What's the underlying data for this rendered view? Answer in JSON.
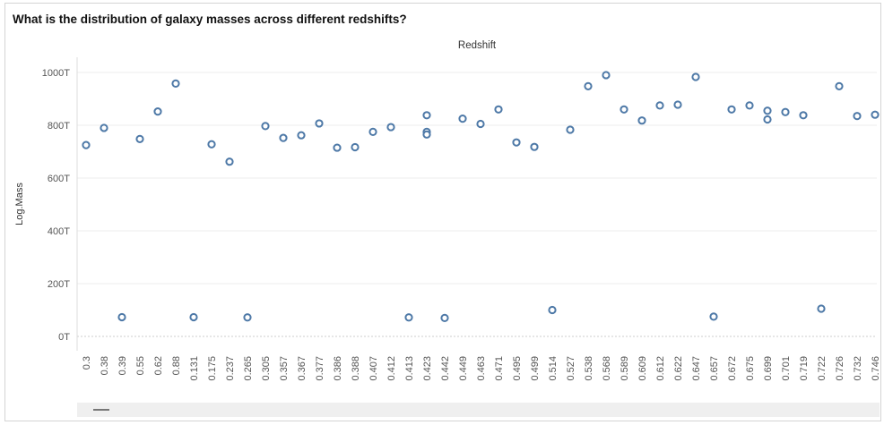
{
  "title": "What is the distribution of galaxy masses across different redshifts?",
  "column_header": "Redshift",
  "chart_data": {
    "type": "scatter",
    "title": "What is the distribution of galaxy masses across different redshifts?",
    "xlabel": "Redshift",
    "ylabel": "Log.Mass",
    "y_ticks": [
      "0T",
      "200T",
      "400T",
      "600T",
      "800T",
      "1000T"
    ],
    "y_tick_values": [
      0,
      200,
      400,
      600,
      800,
      1000
    ],
    "ylim": [
      -20,
      1020
    ],
    "grid": true,
    "categories": [
      "0.3",
      "0.38",
      "0.39",
      "0.55",
      "0.62",
      "0.88",
      "0.131",
      "0.175",
      "0.237",
      "0.265",
      "0.305",
      "0.357",
      "0.367",
      "0.377",
      "0.386",
      "0.388",
      "0.407",
      "0.412",
      "0.413",
      "0.423",
      "0.442",
      "0.449",
      "0.463",
      "0.471",
      "0.495",
      "0.499",
      "0.514",
      "0.527",
      "0.538",
      "0.568",
      "0.589",
      "0.609",
      "0.612",
      "0.622",
      "0.647",
      "0.657",
      "0.672",
      "0.675",
      "0.699",
      "0.701",
      "0.719",
      "0.722",
      "0.726",
      "0.732",
      "0.746"
    ],
    "points": [
      {
        "cat": 0,
        "values": [
          725
        ]
      },
      {
        "cat": 1,
        "values": [
          790
        ]
      },
      {
        "cat": 2,
        "values": [
          73
        ]
      },
      {
        "cat": 3,
        "values": [
          748
        ]
      },
      {
        "cat": 4,
        "values": [
          852
        ]
      },
      {
        "cat": 5,
        "values": [
          958
        ]
      },
      {
        "cat": 6,
        "values": [
          73
        ]
      },
      {
        "cat": 7,
        "values": [
          728
        ]
      },
      {
        "cat": 8,
        "values": [
          662
        ]
      },
      {
        "cat": 9,
        "values": [
          72
        ]
      },
      {
        "cat": 10,
        "values": [
          797
        ]
      },
      {
        "cat": 11,
        "values": [
          752
        ]
      },
      {
        "cat": 12,
        "values": [
          762
        ]
      },
      {
        "cat": 13,
        "values": [
          807
        ]
      },
      {
        "cat": 14,
        "values": [
          715
        ]
      },
      {
        "cat": 15,
        "values": [
          717
        ]
      },
      {
        "cat": 16,
        "values": [
          775
        ]
      },
      {
        "cat": 17,
        "values": [
          793
        ]
      },
      {
        "cat": 18,
        "values": [
          72
        ]
      },
      {
        "cat": 19,
        "values": [
          838,
          775,
          765
        ]
      },
      {
        "cat": 20,
        "values": [
          70
        ]
      },
      {
        "cat": 21,
        "values": [
          825
        ]
      },
      {
        "cat": 22,
        "values": [
          805
        ]
      },
      {
        "cat": 23,
        "values": [
          860
        ]
      },
      {
        "cat": 24,
        "values": [
          735
        ]
      },
      {
        "cat": 25,
        "values": [
          718
        ]
      },
      {
        "cat": 26,
        "values": [
          100
        ]
      },
      {
        "cat": 27,
        "values": [
          783
        ]
      },
      {
        "cat": 28,
        "values": [
          948
        ]
      },
      {
        "cat": 29,
        "values": [
          990
        ]
      },
      {
        "cat": 30,
        "values": [
          860
        ]
      },
      {
        "cat": 31,
        "values": [
          818
        ]
      },
      {
        "cat": 32,
        "values": [
          875
        ]
      },
      {
        "cat": 33,
        "values": [
          878
        ]
      },
      {
        "cat": 34,
        "values": [
          983
        ]
      },
      {
        "cat": 35,
        "values": [
          75
        ]
      },
      {
        "cat": 36,
        "values": [
          860
        ]
      },
      {
        "cat": 37,
        "values": [
          875
        ]
      },
      {
        "cat": 38,
        "values": [
          855,
          822
        ]
      },
      {
        "cat": 39,
        "values": [
          850
        ]
      },
      {
        "cat": 40,
        "values": [
          838
        ]
      },
      {
        "cat": 41,
        "values": [
          105
        ]
      },
      {
        "cat": 42,
        "values": [
          948
        ]
      },
      {
        "cat": 43,
        "values": [
          835
        ]
      },
      {
        "cat": 44,
        "values": [
          840
        ]
      }
    ],
    "colors": {
      "marker": "#4e79a7",
      "grid": "#eeeeee",
      "zero_line": "#cccccc"
    }
  }
}
